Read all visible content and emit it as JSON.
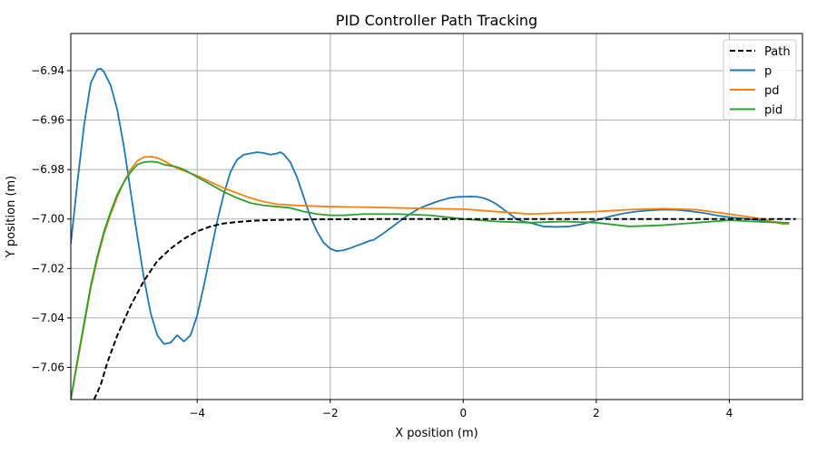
{
  "chart_data": {
    "type": "line",
    "title": "PID Controller Path Tracking",
    "xlabel": "X position (m)",
    "ylabel": "Y position (m)",
    "xlim": [
      -5.9,
      5.1
    ],
    "ylim": [
      -7.073,
      -6.925
    ],
    "grid": true,
    "legend_position": "top-right",
    "x_ticks": [
      {
        "value": -4,
        "label": "−4"
      },
      {
        "value": -2,
        "label": "−2"
      },
      {
        "value": 0,
        "label": "0"
      },
      {
        "value": 2,
        "label": "2"
      },
      {
        "value": 4,
        "label": "4"
      }
    ],
    "y_ticks": [
      {
        "value": -6.94,
        "label": "−6.94"
      },
      {
        "value": -6.96,
        "label": "−6.96"
      },
      {
        "value": -6.98,
        "label": "−6.98"
      },
      {
        "value": -7.0,
        "label": "−7.00"
      },
      {
        "value": -7.02,
        "label": "−7.02"
      },
      {
        "value": -7.04,
        "label": "−7.04"
      },
      {
        "value": -7.06,
        "label": "−7.06"
      }
    ],
    "series": [
      {
        "name": "Path",
        "color": "#000000",
        "dash": true,
        "x": [
          -5.55,
          -5.45,
          -5.35,
          -5.2,
          -5.0,
          -4.8,
          -4.6,
          -4.4,
          -4.2,
          -4.0,
          -3.8,
          -3.6,
          -3.4,
          -3.2,
          -3.0,
          -2.5,
          -2.0,
          -1.0,
          0.0,
          1.0,
          2.0,
          3.0,
          4.0,
          5.0
        ],
        "y": [
          -7.073,
          -7.067,
          -7.058,
          -7.047,
          -7.035,
          -7.025,
          -7.017,
          -7.012,
          -7.008,
          -7.005,
          -7.003,
          -7.0018,
          -7.0012,
          -7.0008,
          -7.0005,
          -7.0002,
          -7.0001,
          -7.0,
          -7.0,
          -7.0,
          -7.0,
          -7.0,
          -7.0,
          -7.0
        ]
      },
      {
        "name": "p",
        "color": "#1f77b4",
        "dash": false,
        "x": [
          -5.9,
          -5.8,
          -5.7,
          -5.6,
          -5.5,
          -5.45,
          -5.4,
          -5.3,
          -5.2,
          -5.1,
          -5.0,
          -4.9,
          -4.8,
          -4.7,
          -4.6,
          -4.5,
          -4.4,
          -4.3,
          -4.2,
          -4.1,
          -4.0,
          -3.9,
          -3.8,
          -3.7,
          -3.6,
          -3.5,
          -3.4,
          -3.3,
          -3.2,
          -3.1,
          -3.0,
          -2.9,
          -2.8,
          -2.75,
          -2.7,
          -2.6,
          -2.5,
          -2.4,
          -2.3,
          -2.2,
          -2.1,
          -2.0,
          -1.9,
          -1.8,
          -1.7,
          -1.6,
          -1.5,
          -1.4,
          -1.35,
          -1.3,
          -1.2,
          -1.1,
          -1.0,
          -0.9,
          -0.8,
          -0.7,
          -0.6,
          -0.5,
          -0.4,
          -0.3,
          -0.2,
          -0.1,
          0.0,
          0.1,
          0.2,
          0.3,
          0.4,
          0.5,
          0.6,
          0.7,
          0.8,
          0.9,
          1.0,
          1.2,
          1.4,
          1.6,
          1.8,
          2.0,
          2.2,
          2.4,
          2.6,
          2.8,
          3.0,
          3.2,
          3.4,
          3.6,
          3.8,
          4.0,
          4.2,
          4.4,
          4.6,
          4.8,
          4.9
        ],
        "y": [
          -7.01,
          -6.985,
          -6.962,
          -6.945,
          -6.9395,
          -6.9392,
          -6.9405,
          -6.946,
          -6.956,
          -6.971,
          -6.989,
          -7.007,
          -7.024,
          -7.038,
          -7.047,
          -7.0505,
          -7.05,
          -7.047,
          -7.0495,
          -7.047,
          -7.039,
          -7.027,
          -7.014,
          -7.001,
          -6.99,
          -6.981,
          -6.976,
          -6.974,
          -6.9735,
          -6.973,
          -6.9733,
          -6.974,
          -6.9735,
          -6.973,
          -6.9738,
          -6.977,
          -6.983,
          -6.991,
          -6.999,
          -7.005,
          -7.0095,
          -7.012,
          -7.013,
          -7.0126,
          -7.0118,
          -7.0108,
          -7.0098,
          -7.0087,
          -7.0085,
          -7.0076,
          -7.0058,
          -7.0038,
          -7.0018,
          -6.9998,
          -6.998,
          -6.9963,
          -6.995,
          -6.994,
          -6.993,
          -6.9922,
          -6.9915,
          -6.9911,
          -6.991,
          -6.9909,
          -6.991,
          -6.9915,
          -6.9925,
          -6.994,
          -6.996,
          -6.998,
          -7.0,
          -7.001,
          -7.0015,
          -7.003,
          -7.0032,
          -7.003,
          -7.002,
          -7.0005,
          -6.999,
          -6.9978,
          -6.997,
          -6.9965,
          -6.9962,
          -6.9963,
          -6.9968,
          -6.9975,
          -6.9985,
          -6.9993,
          -6.9998,
          -7.0003,
          -7.001,
          -7.0015,
          -7.0016
        ]
      },
      {
        "name": "pd",
        "color": "#ff7f0e",
        "dash": false,
        "x": [
          -5.9,
          -5.8,
          -5.7,
          -5.6,
          -5.5,
          -5.4,
          -5.3,
          -5.2,
          -5.1,
          -5.0,
          -4.9,
          -4.8,
          -4.7,
          -4.6,
          -4.5,
          -4.4,
          -4.3,
          -4.2,
          -4.1,
          -4.0,
          -3.8,
          -3.6,
          -3.4,
          -3.2,
          -3.0,
          -2.8,
          -2.5,
          -2.2,
          -2.0,
          -1.5,
          -1.0,
          -0.5,
          0.0,
          0.5,
          1.0,
          1.5,
          2.0,
          2.5,
          3.0,
          3.5,
          4.0,
          4.5,
          4.8,
          4.9
        ],
        "y": [
          -7.073,
          -7.058,
          -7.043,
          -7.028,
          -7.016,
          -7.006,
          -6.998,
          -6.991,
          -6.985,
          -6.98,
          -6.9765,
          -6.975,
          -6.9748,
          -6.9752,
          -6.9765,
          -6.978,
          -6.9795,
          -6.9805,
          -6.9815,
          -6.9825,
          -6.985,
          -6.9875,
          -6.9895,
          -6.9915,
          -6.993,
          -6.994,
          -6.9945,
          -6.9948,
          -6.995,
          -6.9952,
          -6.9955,
          -6.9958,
          -6.996,
          -6.997,
          -6.998,
          -6.9975,
          -6.997,
          -6.9962,
          -6.9958,
          -6.9962,
          -6.998,
          -7.0,
          -7.002,
          -7.002
        ]
      },
      {
        "name": "pid",
        "color": "#2ca02c",
        "dash": false,
        "x": [
          -5.9,
          -5.8,
          -5.7,
          -5.6,
          -5.5,
          -5.4,
          -5.3,
          -5.2,
          -5.1,
          -5.0,
          -4.9,
          -4.8,
          -4.7,
          -4.6,
          -4.5,
          -4.4,
          -4.3,
          -4.2,
          -4.1,
          -4.0,
          -3.8,
          -3.6,
          -3.4,
          -3.2,
          -3.0,
          -2.8,
          -2.6,
          -2.4,
          -2.2,
          -2.0,
          -1.8,
          -1.5,
          -1.0,
          -0.5,
          0.0,
          0.5,
          1.0,
          1.5,
          2.0,
          2.5,
          3.0,
          3.5,
          4.0,
          4.5,
          4.8,
          4.9
        ],
        "y": [
          -7.073,
          -7.057,
          -7.042,
          -7.027,
          -7.015,
          -7.005,
          -6.997,
          -6.99,
          -6.985,
          -6.981,
          -6.978,
          -6.977,
          -6.9768,
          -6.977,
          -6.978,
          -6.9785,
          -6.979,
          -6.98,
          -6.9815,
          -6.983,
          -6.986,
          -6.989,
          -6.9915,
          -6.9935,
          -6.9945,
          -6.995,
          -6.9955,
          -6.997,
          -6.998,
          -6.9985,
          -6.9985,
          -6.998,
          -6.998,
          -6.9985,
          -7.0,
          -7.001,
          -7.0015,
          -7.001,
          -7.0015,
          -7.003,
          -7.0025,
          -7.0015,
          -7.0005,
          -7.0012,
          -7.0015,
          -7.0016
        ]
      }
    ]
  }
}
